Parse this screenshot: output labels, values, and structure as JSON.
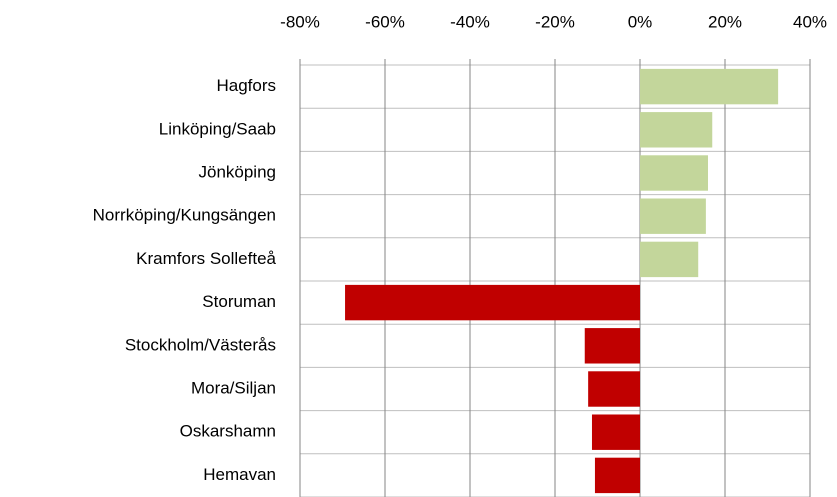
{
  "chart_data": {
    "type": "hbar",
    "categories": [
      "Hagfors",
      "Linköping/Saab",
      "Jönköping",
      "Norrköping/Kungsängen",
      "Kramfors Sollefteå",
      "Storuman",
      "Stockholm/Västerås",
      "Mora/Siljan",
      "Oskarshamn",
      "Hemavan"
    ],
    "values": [
      32.5,
      17,
      16,
      15.5,
      13.7,
      -69.4,
      -13,
      -12.2,
      -11.3,
      -10.6
    ],
    "positive_color": "#c3d69b",
    "negative_color": "#c00000",
    "xlim": [
      -80,
      40
    ],
    "xticks": [
      {
        "value": -80,
        "label": "-80%"
      },
      {
        "value": -60,
        "label": "-60%"
      },
      {
        "value": -40,
        "label": "-40%"
      },
      {
        "value": -20,
        "label": "-20%"
      },
      {
        "value": 0,
        "label": "0%"
      },
      {
        "value": 20,
        "label": "20%"
      },
      {
        "value": 40,
        "label": "40%"
      }
    ],
    "grid": true
  }
}
